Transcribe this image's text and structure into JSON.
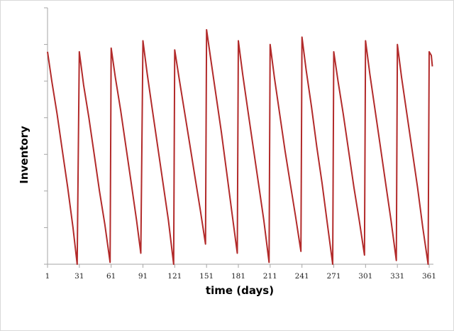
{
  "chart_data": {
    "type": "line",
    "title": "",
    "xlabel": "time (days)",
    "ylabel": "Inventory",
    "x_tick_labels": [
      "1",
      "31",
      "61",
      "91",
      "121",
      "151",
      "181",
      "211",
      "241",
      "271",
      "301",
      "331",
      "361"
    ],
    "y_tick_labels": [],
    "xlim": [
      1,
      365
    ],
    "ylim": [
      0,
      7
    ],
    "grid": false,
    "legend": null,
    "line_color": "#b22a2a",
    "series": [
      {
        "name": "Inventory",
        "points": [
          [
            1,
            5.8
          ],
          [
            5,
            5.0
          ],
          [
            10,
            4.1
          ],
          [
            15,
            3.1
          ],
          [
            20,
            2.1
          ],
          [
            25,
            1.0
          ],
          [
            29,
            0.0
          ],
          [
            31,
            5.8
          ],
          [
            35,
            4.9
          ],
          [
            40,
            4.0
          ],
          [
            45,
            3.0
          ],
          [
            50,
            2.0
          ],
          [
            55,
            1.1
          ],
          [
            60,
            0.05
          ],
          [
            61,
            5.9
          ],
          [
            65,
            5.1
          ],
          [
            70,
            4.2
          ],
          [
            75,
            3.2
          ],
          [
            80,
            2.2
          ],
          [
            85,
            1.2
          ],
          [
            89,
            0.3
          ],
          [
            91,
            6.1
          ],
          [
            95,
            5.2
          ],
          [
            100,
            4.2
          ],
          [
            105,
            3.2
          ],
          [
            110,
            2.2
          ],
          [
            115,
            1.2
          ],
          [
            120,
            0.0
          ],
          [
            121,
            5.85
          ],
          [
            125,
            5.1
          ],
          [
            130,
            4.2
          ],
          [
            135,
            3.3
          ],
          [
            140,
            2.4
          ],
          [
            145,
            1.5
          ],
          [
            150,
            0.55
          ],
          [
            151,
            6.4
          ],
          [
            155,
            5.6
          ],
          [
            160,
            4.6
          ],
          [
            165,
            3.6
          ],
          [
            170,
            2.5
          ],
          [
            175,
            1.4
          ],
          [
            180,
            0.3
          ],
          [
            181,
            6.1
          ],
          [
            185,
            5.2
          ],
          [
            190,
            4.2
          ],
          [
            195,
            3.2
          ],
          [
            200,
            2.2
          ],
          [
            205,
            1.2
          ],
          [
            210,
            0.05
          ],
          [
            211,
            6.0
          ],
          [
            215,
            5.1
          ],
          [
            220,
            4.1
          ],
          [
            225,
            3.1
          ],
          [
            230,
            2.2
          ],
          [
            235,
            1.3
          ],
          [
            240,
            0.35
          ],
          [
            241,
            6.2
          ],
          [
            245,
            5.3
          ],
          [
            250,
            4.3
          ],
          [
            255,
            3.2
          ],
          [
            260,
            2.2
          ],
          [
            265,
            1.1
          ],
          [
            270,
            0.0
          ],
          [
            271,
            5.8
          ],
          [
            275,
            5.0
          ],
          [
            280,
            4.1
          ],
          [
            285,
            3.1
          ],
          [
            290,
            2.1
          ],
          [
            295,
            1.2
          ],
          [
            300,
            0.25
          ],
          [
            301,
            6.1
          ],
          [
            305,
            5.2
          ],
          [
            310,
            4.2
          ],
          [
            315,
            3.2
          ],
          [
            320,
            2.2
          ],
          [
            325,
            1.2
          ],
          [
            330,
            0.1
          ],
          [
            331,
            6.0
          ],
          [
            335,
            5.1
          ],
          [
            340,
            4.1
          ],
          [
            345,
            3.1
          ],
          [
            350,
            2.1
          ],
          [
            355,
            1.0
          ],
          [
            360,
            0.0
          ],
          [
            361,
            5.8
          ],
          [
            363,
            5.7
          ],
          [
            364,
            5.4
          ]
        ]
      }
    ]
  },
  "axes": {
    "xlabel": "time (days)",
    "ylabel": "Inventory"
  }
}
